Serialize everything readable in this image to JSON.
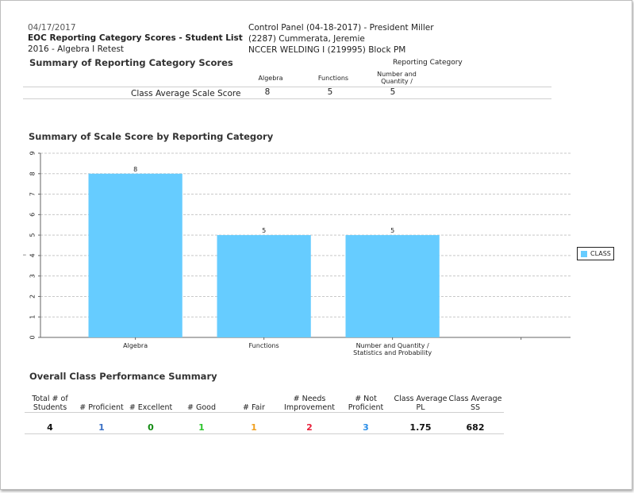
{
  "header": {
    "date": "04/17/2017",
    "report_title": "EOC Reporting Category Scores - Student List",
    "test_name": "2016 - Algebra I Retest",
    "control_panel": "Control Panel (04-18-2017) - President Miller",
    "student": "(2287) Cummerata, Jeremie",
    "course": "NCCER WELDING I (219995) Block PM"
  },
  "summary_table": {
    "title": "Summary of Reporting Category Scores",
    "group_header": "Reporting Category",
    "columns": [
      "Algebra",
      "Functions",
      "Number and\nQuantity /"
    ],
    "row_label": "Class Average Scale Score",
    "values": [
      "8",
      "5",
      "5"
    ]
  },
  "chart_section_title": "Summary of Scale Score by Reporting Category",
  "chart_data": {
    "type": "bar",
    "categories": [
      "Algebra",
      "Functions",
      "Number and Quantity /\nStatistics and Probability",
      ""
    ],
    "series": [
      {
        "name": "CLASS",
        "values": [
          8,
          5,
          5,
          null
        ],
        "color": "#66ccff"
      }
    ],
    "data_labels": [
      "8",
      "5",
      "5"
    ],
    "y_ticks": [
      "0",
      "1",
      "2",
      "3",
      "4",
      "5",
      "6",
      "7",
      "8",
      "9"
    ],
    "ylabel": "|",
    "ylim": [
      0,
      9
    ],
    "grid": true,
    "legend": "right"
  },
  "performance": {
    "title": "Overall Class Performance Summary",
    "headers": [
      "Total # of\nStudents",
      "# Proficient",
      "# Excellent",
      "# Good",
      "# Fair",
      "# Needs\nImprovement",
      "# Not\nProficient",
      "Class Average\nPL",
      "Class Average\nSS"
    ],
    "values": [
      "4",
      "1",
      "0",
      "1",
      "1",
      "2",
      "3",
      "1.75",
      "682"
    ],
    "colors": [
      "#111111",
      "#3a6fc4",
      "#118a11",
      "#2dc42d",
      "#f0a020",
      "#e8203a",
      "#2a8ee8",
      "#111111",
      "#111111"
    ]
  }
}
